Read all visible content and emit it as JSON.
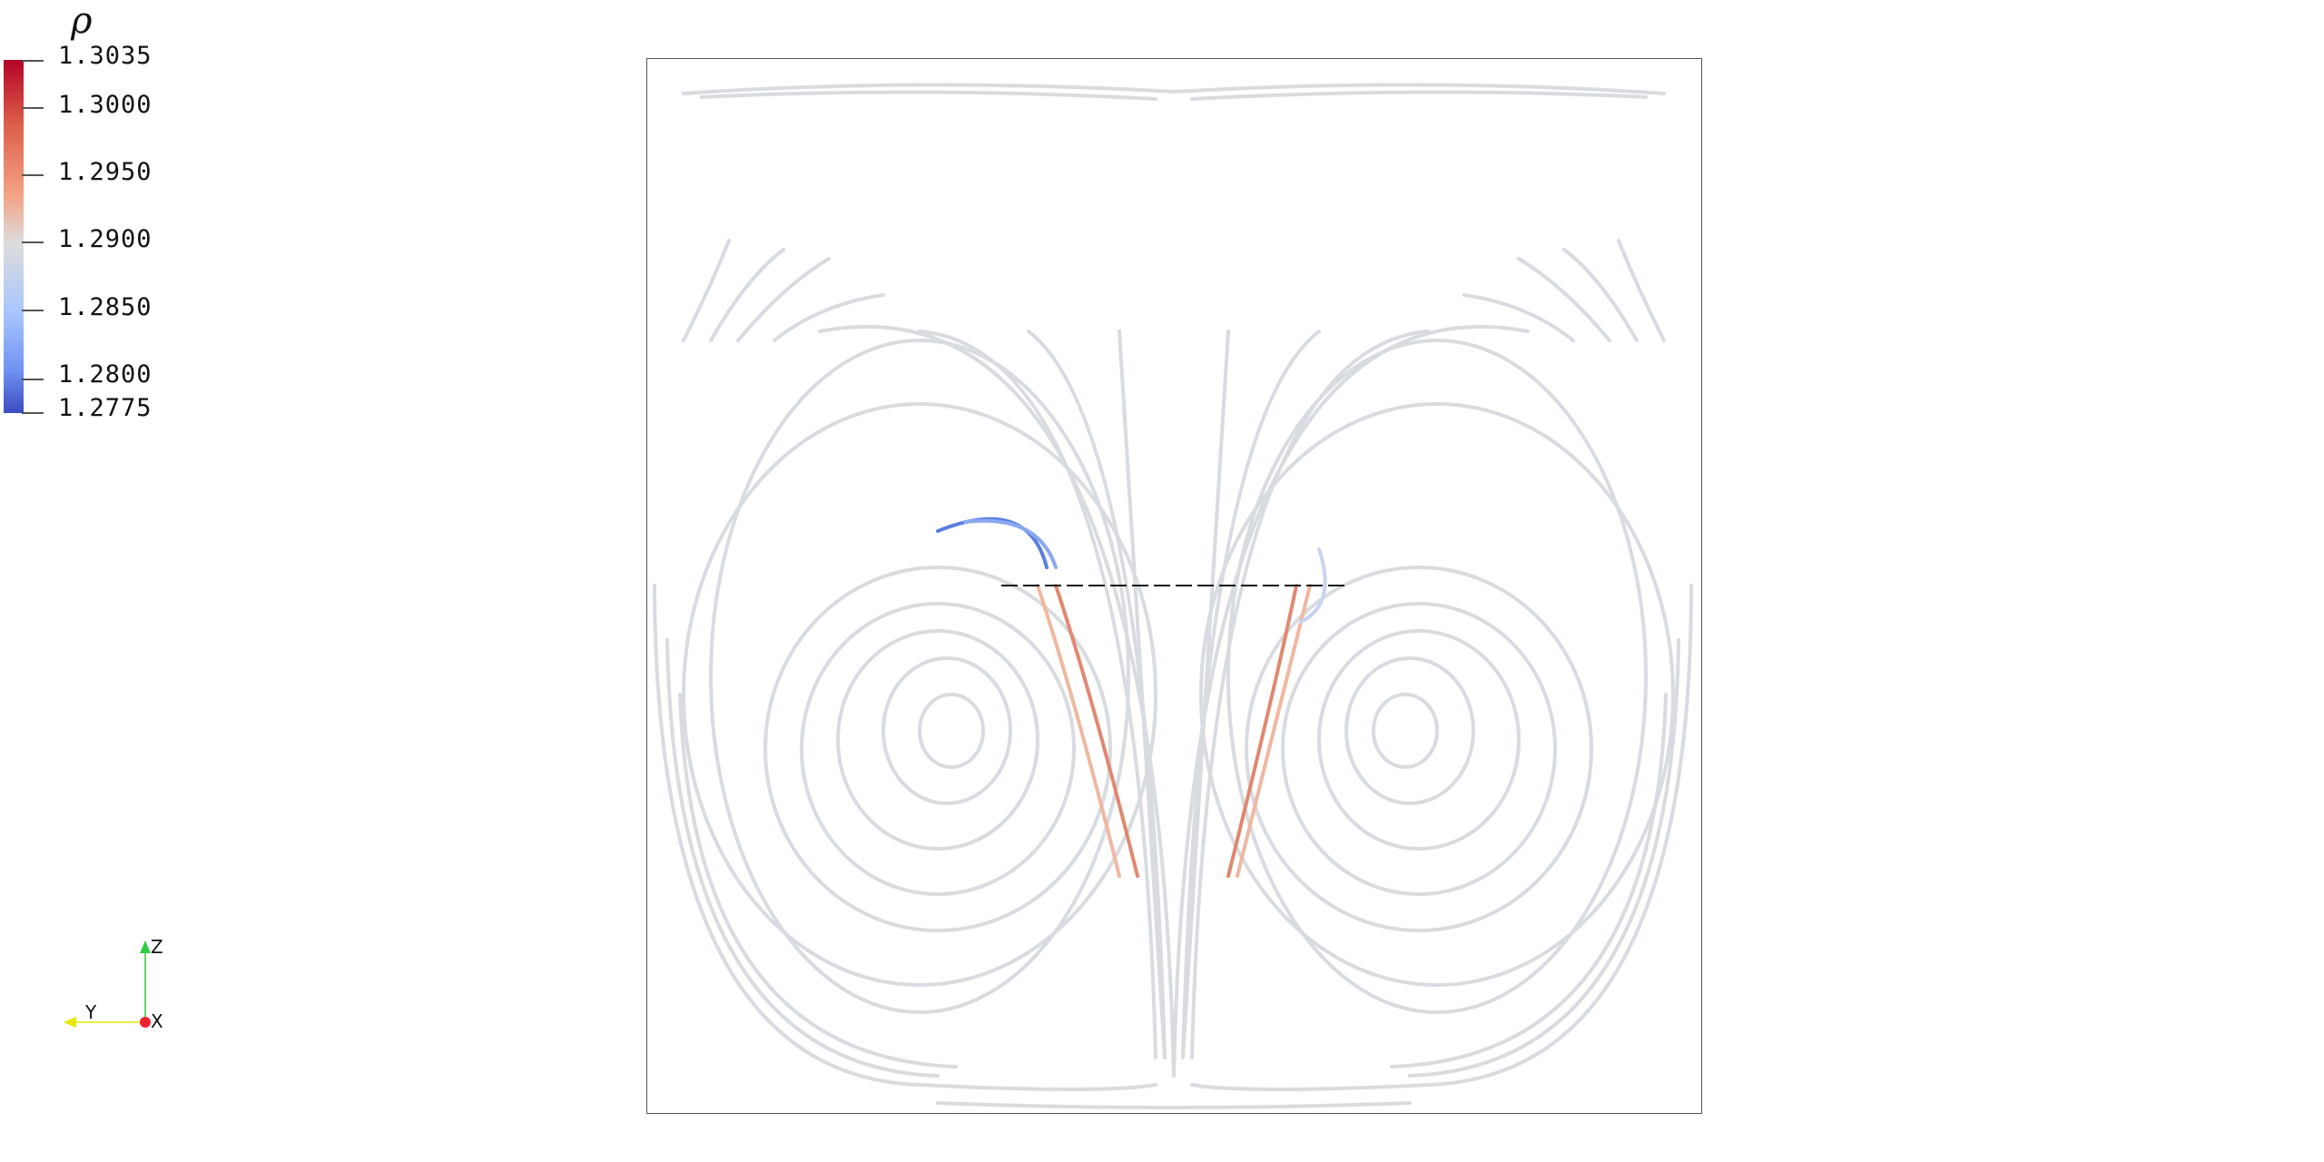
{
  "legend": {
    "title": "ρ",
    "ticks": [
      "1.3035",
      "1.3000",
      "1.2950",
      "1.2900",
      "1.2850",
      "1.2800",
      "1.2775"
    ],
    "colors": {
      "max": "#b40426",
      "mid": "#dddcdc",
      "min": "#3b4cc0"
    }
  },
  "orientation": {
    "z_label": "Z",
    "y_label": "Y",
    "x_label": "X"
  }
}
